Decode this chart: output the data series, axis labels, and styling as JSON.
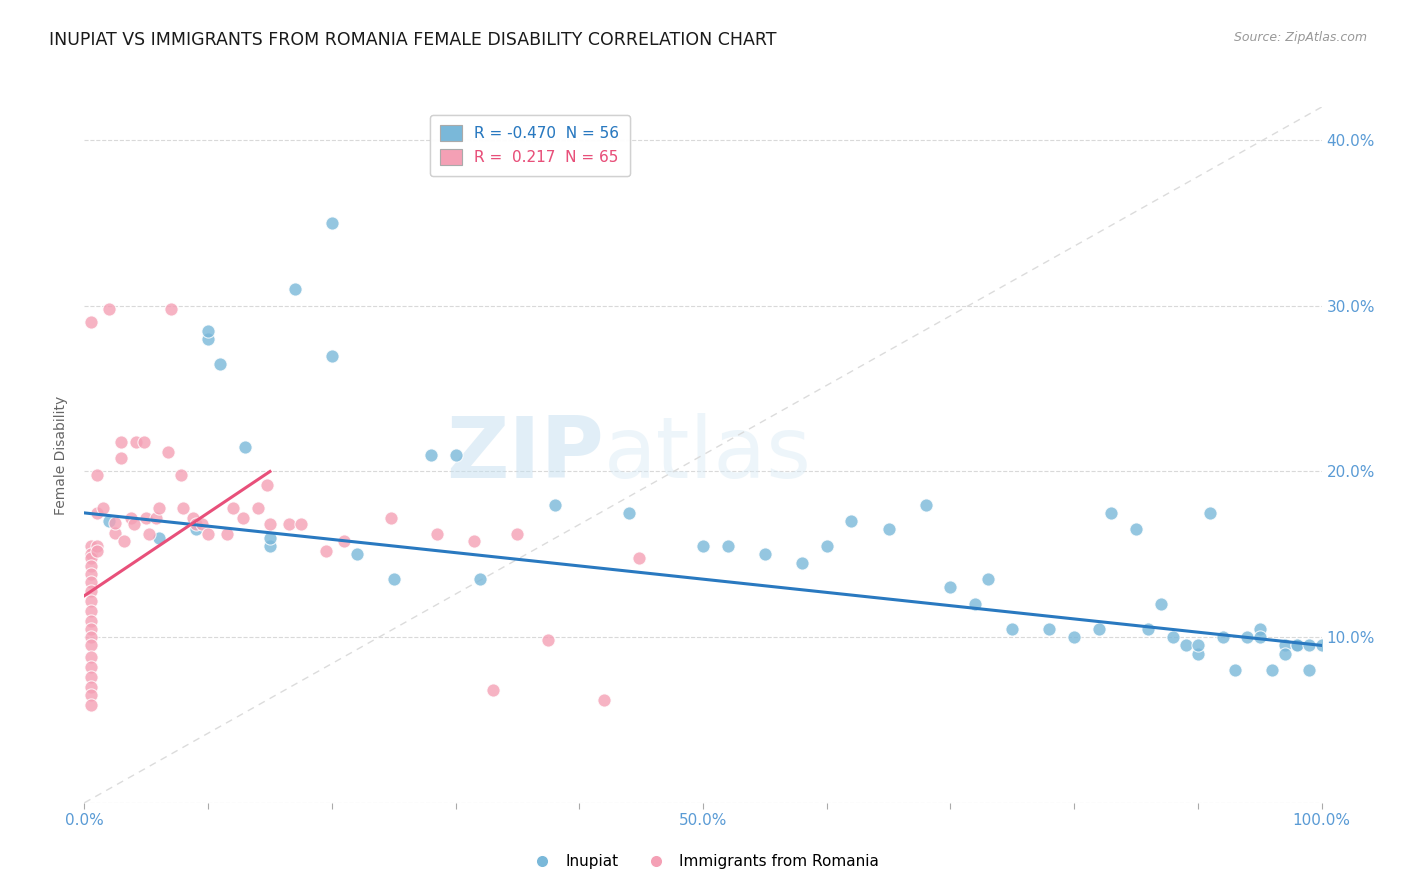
{
  "title": "INUPIAT VS IMMIGRANTS FROM ROMANIA FEMALE DISABILITY CORRELATION CHART",
  "source": "Source: ZipAtlas.com",
  "ylabel": "Female Disability",
  "xlim": [
    0.0,
    1.0
  ],
  "ylim": [
    0.0,
    0.42
  ],
  "xticks": [
    0.0,
    0.1,
    0.2,
    0.3,
    0.4,
    0.5,
    0.6,
    0.7,
    0.8,
    0.9,
    1.0
  ],
  "xticklabels": [
    "0.0%",
    "",
    "",
    "",
    "",
    "50.0%",
    "",
    "",
    "",
    "",
    "100.0%"
  ],
  "yticks": [
    0.0,
    0.1,
    0.2,
    0.3,
    0.4
  ],
  "yticklabels_right": [
    "",
    "10.0%",
    "20.0%",
    "30.0%",
    "40.0%"
  ],
  "legend_R_blue": "-0.470",
  "legend_N_blue": "56",
  "legend_R_pink": "0.217",
  "legend_N_pink": "65",
  "blue_color": "#7ab8d9",
  "pink_color": "#f4a0b5",
  "blue_line_color": "#2979c0",
  "pink_line_color": "#e8507a",
  "diagonal_color": "#d8d8d8",
  "background_color": "#ffffff",
  "watermark_zip": "ZIP",
  "watermark_atlas": "atlas",
  "blue_scatter_x": [
    0.02,
    0.06,
    0.09,
    0.1,
    0.1,
    0.11,
    0.13,
    0.15,
    0.15,
    0.17,
    0.2,
    0.2,
    0.22,
    0.25,
    0.28,
    0.3,
    0.32,
    0.38,
    0.44,
    0.5,
    0.52,
    0.55,
    0.58,
    0.6,
    0.62,
    0.65,
    0.68,
    0.7,
    0.72,
    0.73,
    0.75,
    0.78,
    0.8,
    0.82,
    0.83,
    0.85,
    0.86,
    0.87,
    0.88,
    0.89,
    0.9,
    0.9,
    0.91,
    0.92,
    0.93,
    0.94,
    0.95,
    0.95,
    0.96,
    0.97,
    0.97,
    0.98,
    0.98,
    0.99,
    0.99,
    1.0
  ],
  "blue_scatter_y": [
    0.17,
    0.16,
    0.165,
    0.28,
    0.285,
    0.265,
    0.215,
    0.155,
    0.16,
    0.31,
    0.27,
    0.35,
    0.15,
    0.135,
    0.21,
    0.21,
    0.135,
    0.18,
    0.175,
    0.155,
    0.155,
    0.15,
    0.145,
    0.155,
    0.17,
    0.165,
    0.18,
    0.13,
    0.12,
    0.135,
    0.105,
    0.105,
    0.1,
    0.105,
    0.175,
    0.165,
    0.105,
    0.12,
    0.1,
    0.095,
    0.09,
    0.095,
    0.175,
    0.1,
    0.08,
    0.1,
    0.105,
    0.1,
    0.08,
    0.095,
    0.09,
    0.095,
    0.095,
    0.095,
    0.08,
    0.095
  ],
  "pink_scatter_x": [
    0.005,
    0.005,
    0.005,
    0.005,
    0.005,
    0.005,
    0.005,
    0.005,
    0.005,
    0.005,
    0.005,
    0.005,
    0.005,
    0.005,
    0.005,
    0.005,
    0.005,
    0.005,
    0.005,
    0.005,
    0.01,
    0.01,
    0.01,
    0.01,
    0.015,
    0.02,
    0.025,
    0.025,
    0.03,
    0.03,
    0.032,
    0.038,
    0.04,
    0.042,
    0.048,
    0.05,
    0.052,
    0.058,
    0.06,
    0.068,
    0.07,
    0.078,
    0.08,
    0.088,
    0.09,
    0.095,
    0.1,
    0.115,
    0.12,
    0.128,
    0.14,
    0.148,
    0.15,
    0.165,
    0.175,
    0.195,
    0.21,
    0.248,
    0.285,
    0.315,
    0.33,
    0.35,
    0.375,
    0.42,
    0.448
  ],
  "pink_scatter_y": [
    0.155,
    0.15,
    0.148,
    0.143,
    0.138,
    0.133,
    0.128,
    0.122,
    0.116,
    0.11,
    0.105,
    0.1,
    0.095,
    0.088,
    0.082,
    0.076,
    0.07,
    0.065,
    0.059,
    0.29,
    0.155,
    0.152,
    0.198,
    0.175,
    0.178,
    0.298,
    0.163,
    0.169,
    0.218,
    0.208,
    0.158,
    0.172,
    0.168,
    0.218,
    0.218,
    0.172,
    0.162,
    0.172,
    0.178,
    0.212,
    0.298,
    0.198,
    0.178,
    0.172,
    0.168,
    0.168,
    0.162,
    0.162,
    0.178,
    0.172,
    0.178,
    0.192,
    0.168,
    0.168,
    0.168,
    0.152,
    0.158,
    0.172,
    0.162,
    0.158,
    0.068,
    0.162,
    0.098,
    0.062,
    0.148
  ]
}
